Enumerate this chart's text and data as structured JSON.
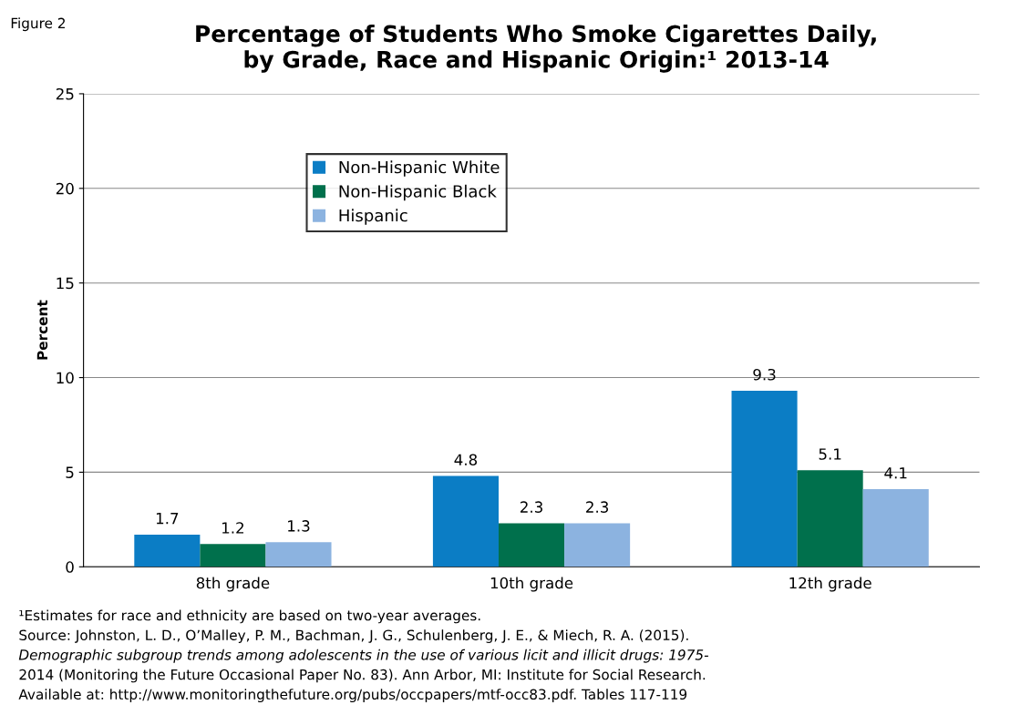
{
  "chart_data": {
    "type": "bar",
    "title": "Percentage of Students Who Smoke Cigarettes Daily,\nby Grade, Race and Hispanic Origin:¹ 2013-14",
    "ylabel": "Percent",
    "categories": [
      "8th grade",
      "10th grade",
      "12th grade"
    ],
    "series": [
      {
        "name": "Non-Hispanic White",
        "color": "#0b7dc5",
        "values": [
          1.7,
          4.8,
          9.3
        ]
      },
      {
        "name": "Non-Hispanic Black",
        "color": "#00704c",
        "values": [
          1.2,
          2.3,
          5.1
        ]
      },
      {
        "name": "Hispanic",
        "color": "#8cb3e0",
        "values": [
          1.3,
          2.3,
          4.1
        ]
      }
    ],
    "ylim": [
      0,
      25
    ],
    "yticks": [
      0,
      5,
      10,
      15,
      20,
      25
    ],
    "grid": "y",
    "legend": "top left",
    "data_labels": true,
    "annotations": [
      "Figure 2",
      "¹Estimates for race and ethnicity are based on two-year averages.",
      "Source: Johnston, L. D., O’Malley, P. M., Bachman, J. G., Schulenberg, J. E., & Miech, R. A. (2015).",
      "Demographic subgroup trends among adolescents in the use of various licit and illicit drugs: 1975-",
      "2014 (Monitoring the Future Occasional Paper No. 83). Ann Arbor, MI: Institute for Social Research.",
      "Available at: http://www.monitoringthefuture.org/pubs/occpapers/mtf-occ83.pdf. Tables 117-119"
    ]
  }
}
